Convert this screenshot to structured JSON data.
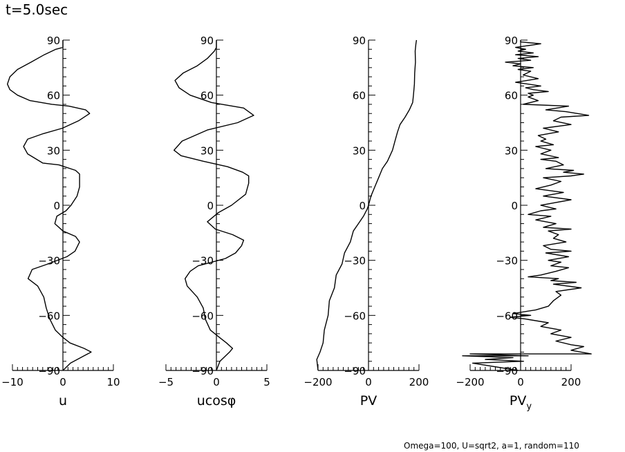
{
  "title": "t=5.0sec",
  "footer": "Omega=100, U=sqrt2, a=1, random=110",
  "chart_data": [
    {
      "type": "line",
      "id": "u",
      "xlabel": "u",
      "ylabel": "",
      "xlim": [
        -10,
        10
      ],
      "ylim": [
        -90,
        90
      ],
      "xticks": [
        -10,
        0,
        10
      ],
      "xtick_labels": [
        "−10",
        "0",
        "10"
      ],
      "yticks": [
        -90,
        -60,
        -30,
        0,
        30,
        60,
        90
      ],
      "ytick_labels": [
        "−90",
        "−60",
        "−30",
        "0",
        "30",
        "60",
        "90"
      ],
      "series": [
        {
          "name": "u",
          "points": [
            [
              0,
              -90
            ],
            [
              1.5,
              -86
            ],
            [
              4.2,
              -82
            ],
            [
              5.6,
              -80
            ],
            [
              4.2,
              -78
            ],
            [
              1.4,
              -75
            ],
            [
              0,
              -72
            ],
            [
              -1.5,
              -68
            ],
            [
              -2.6,
              -62
            ],
            [
              -3.3,
              -56
            ],
            [
              -3.8,
              -50
            ],
            [
              -5,
              -44
            ],
            [
              -6.9,
              -40
            ],
            [
              -6.1,
              -35
            ],
            [
              -3,
              -32
            ],
            [
              0.8,
              -28
            ],
            [
              2.4,
              -25
            ],
            [
              3.3,
              -20
            ],
            [
              2.5,
              -17
            ],
            [
              0,
              -14
            ],
            [
              -1.6,
              -10
            ],
            [
              -1.2,
              -6
            ],
            [
              0.6,
              -3
            ],
            [
              1.6,
              0
            ],
            [
              2.8,
              5
            ],
            [
              3.3,
              10
            ],
            [
              3.3,
              15
            ],
            [
              3.3,
              17
            ],
            [
              2.5,
              19
            ],
            [
              -0.8,
              22
            ],
            [
              -4,
              23
            ],
            [
              -7,
              28
            ],
            [
              -7.8,
              32
            ],
            [
              -7,
              36
            ],
            [
              -3.9,
              39
            ],
            [
              -0.1,
              42
            ],
            [
              3.1,
              46
            ],
            [
              5.3,
              50
            ],
            [
              4.5,
              52
            ],
            [
              1.2,
              54
            ],
            [
              -2.2,
              55
            ],
            [
              -6.5,
              57
            ],
            [
              -9,
              60
            ],
            [
              -10.5,
              63
            ],
            [
              -11,
              66
            ],
            [
              -10.5,
              70
            ],
            [
              -9,
              74
            ],
            [
              -6.3,
              78
            ],
            [
              -3.7,
              82
            ],
            [
              -1.4,
              85
            ],
            [
              0,
              86
            ],
            [
              0,
              90
            ]
          ]
        }
      ]
    },
    {
      "type": "line",
      "id": "ucos",
      "xlabel": "ucosφ",
      "ylabel": "",
      "xlim": [
        -5,
        5
      ],
      "ylim": [
        -90,
        90
      ],
      "xticks": [
        -5,
        0,
        5
      ],
      "xtick_labels": [
        "−5",
        "0",
        "5"
      ],
      "yticks": [
        -90,
        -60,
        -30,
        0,
        30,
        60,
        90
      ],
      "ytick_labels": [
        "−90",
        "−60",
        "−30",
        "0",
        "30",
        "60",
        "90"
      ],
      "series": [
        {
          "name": "ucosφ",
          "points": [
            [
              0,
              -90
            ],
            [
              0.35,
              -85
            ],
            [
              1.3,
              -80
            ],
            [
              1.6,
              -78
            ],
            [
              1,
              -75
            ],
            [
              0.3,
              -72
            ],
            [
              -0.6,
              -68
            ],
            [
              -1.1,
              -62
            ],
            [
              -1.3,
              -56
            ],
            [
              -1.9,
              -50
            ],
            [
              -2.9,
              -44
            ],
            [
              -3.1,
              -40
            ],
            [
              -2.6,
              -36
            ],
            [
              -1.8,
              -33
            ],
            [
              0.9,
              -29
            ],
            [
              1.9,
              -26
            ],
            [
              2.5,
              -22
            ],
            [
              2.7,
              -19
            ],
            [
              1.6,
              -16
            ],
            [
              -0.1,
              -13
            ],
            [
              -0.9,
              -9
            ],
            [
              0.2,
              -4
            ],
            [
              1.5,
              0
            ],
            [
              2.9,
              6
            ],
            [
              3.2,
              12
            ],
            [
              3.2,
              16
            ],
            [
              2.6,
              18
            ],
            [
              1.1,
              21
            ],
            [
              -1.3,
              24
            ],
            [
              -3.5,
              27
            ],
            [
              -4.2,
              30
            ],
            [
              -3.4,
              35
            ],
            [
              -0.9,
              41
            ],
            [
              2.1,
              45
            ],
            [
              3.7,
              49
            ],
            [
              2.7,
              53
            ],
            [
              -0.5,
              56
            ],
            [
              -2.6,
              60
            ],
            [
              -3.7,
              64
            ],
            [
              -4.1,
              68
            ],
            [
              -3.3,
              72
            ],
            [
              -1.9,
              76
            ],
            [
              -0.9,
              80
            ],
            [
              -0.2,
              84
            ],
            [
              0,
              86
            ],
            [
              0,
              90
            ]
          ]
        }
      ]
    },
    {
      "type": "line",
      "id": "pv",
      "xlabel": "PV",
      "ylabel": "",
      "xlim": [
        -200,
        200
      ],
      "ylim": [
        -90,
        90
      ],
      "xticks": [
        -200,
        0,
        200
      ],
      "xtick_labels": [
        "−200",
        "0",
        "200"
      ],
      "yticks": [
        -90,
        -60,
        -30,
        0,
        30,
        60,
        90
      ],
      "ytick_labels": [
        "−90",
        "−60",
        "−30",
        "0",
        "30",
        "60",
        "90"
      ],
      "series": [
        {
          "name": "PV",
          "points": [
            [
              -200,
              -90
            ],
            [
              -205,
              -84
            ],
            [
              -192,
              -80
            ],
            [
              -180,
              -75
            ],
            [
              -175,
              -68
            ],
            [
              -160,
              -60
            ],
            [
              -155,
              -52
            ],
            [
              -135,
              -45
            ],
            [
              -128,
              -38
            ],
            [
              -105,
              -32
            ],
            [
              -95,
              -26
            ],
            [
              -72,
              -20
            ],
            [
              -60,
              -14
            ],
            [
              -40,
              -10
            ],
            [
              -20,
              -6
            ],
            [
              -5,
              -2
            ],
            [
              0,
              0
            ],
            [
              10,
              5
            ],
            [
              25,
              10
            ],
            [
              40,
              15
            ],
            [
              55,
              20
            ],
            [
              75,
              24
            ],
            [
              95,
              30
            ],
            [
              105,
              35
            ],
            [
              115,
              40
            ],
            [
              125,
              44
            ],
            [
              145,
              48
            ],
            [
              162,
              52
            ],
            [
              175,
              56
            ],
            [
              178,
              60
            ],
            [
              182,
              66
            ],
            [
              183,
              72
            ],
            [
              186,
              78
            ],
            [
              185,
              84
            ],
            [
              188,
              88
            ],
            [
              190,
              90
            ]
          ]
        }
      ]
    },
    {
      "type": "line",
      "id": "pvy",
      "xlabel": "PV",
      "xlabel_sub": "y",
      "ylabel": "",
      "xlim": [
        -200,
        200
      ],
      "ylim": [
        -90,
        90
      ],
      "xticks": [
        -200,
        0,
        200
      ],
      "xtick_labels": [
        "−200",
        "0",
        "200"
      ],
      "yticks": [
        -90,
        -60,
        -30,
        0,
        30,
        60,
        90
      ],
      "ytick_labels": [
        "−90",
        "−60",
        "−30",
        "0",
        "30",
        "60",
        "90"
      ],
      "series": [
        {
          "name": "PV_y",
          "points": [
            [
              -10,
              -90
            ],
            [
              -190,
              -86
            ],
            [
              10,
              -85
            ],
            [
              -140,
              -84
            ],
            [
              -30,
              -83
            ],
            [
              -230,
              -82
            ],
            [
              30,
              -82
            ],
            [
              -200,
              -81
            ],
            [
              280,
              -81
            ],
            [
              200,
              -79
            ],
            [
              250,
              -77
            ],
            [
              200,
              -76
            ],
            [
              140,
              -74
            ],
            [
              200,
              -72
            ],
            [
              120,
              -70
            ],
            [
              160,
              -68
            ],
            [
              80,
              -66
            ],
            [
              110,
              -64
            ],
            [
              20,
              -62
            ],
            [
              -40,
              -61
            ],
            [
              40,
              -60
            ],
            [
              -30,
              -59
            ],
            [
              60,
              -57
            ],
            [
              110,
              -55
            ],
            [
              130,
              -52
            ],
            [
              160,
              -49
            ],
            [
              140,
              -47
            ],
            [
              240,
              -45
            ],
            [
              130,
              -43
            ],
            [
              220,
              -42
            ],
            [
              120,
              -41
            ],
            [
              150,
              -40
            ],
            [
              30,
              -39
            ],
            [
              80,
              -38
            ],
            [
              140,
              -36
            ],
            [
              190,
              -34
            ],
            [
              120,
              -33
            ],
            [
              160,
              -31
            ],
            [
              110,
              -30
            ],
            [
              190,
              -28
            ],
            [
              100,
              -26
            ],
            [
              200,
              -25
            ],
            [
              120,
              -24
            ],
            [
              90,
              -22
            ],
            [
              180,
              -20
            ],
            [
              130,
              -18
            ],
            [
              150,
              -16
            ],
            [
              110,
              -14
            ],
            [
              200,
              -13
            ],
            [
              90,
              -12
            ],
            [
              140,
              -10
            ],
            [
              60,
              -8
            ],
            [
              120,
              -6
            ],
            [
              30,
              -5
            ],
            [
              80,
              -3
            ],
            [
              140,
              -2
            ],
            [
              80,
              0
            ],
            [
              120,
              1
            ],
            [
              200,
              3
            ],
            [
              90,
              5
            ],
            [
              170,
              7
            ],
            [
              60,
              9
            ],
            [
              120,
              11
            ],
            [
              160,
              13
            ],
            [
              90,
              15
            ],
            [
              200,
              16
            ],
            [
              250,
              17
            ],
            [
              170,
              18
            ],
            [
              210,
              19
            ],
            [
              100,
              20
            ],
            [
              170,
              22
            ],
            [
              140,
              24
            ],
            [
              80,
              25
            ],
            [
              150,
              26
            ],
            [
              80,
              28
            ],
            [
              120,
              30
            ],
            [
              60,
              32
            ],
            [
              130,
              33
            ],
            [
              80,
              35
            ],
            [
              100,
              36
            ],
            [
              70,
              38
            ],
            [
              150,
              40
            ],
            [
              90,
              42
            ],
            [
              200,
              44
            ],
            [
              130,
              46
            ],
            [
              160,
              48
            ],
            [
              270,
              49
            ],
            [
              180,
              51
            ],
            [
              100,
              52
            ],
            [
              190,
              54
            ],
            [
              10,
              55
            ],
            [
              70,
              57
            ],
            [
              30,
              59
            ],
            [
              50,
              60
            ],
            [
              30,
              61
            ],
            [
              110,
              62
            ],
            [
              50,
              63
            ],
            [
              20,
              64
            ],
            [
              80,
              65
            ],
            [
              30,
              66
            ],
            [
              -20,
              67
            ],
            [
              70,
              69
            ],
            [
              10,
              71
            ],
            [
              40,
              73
            ],
            [
              -10,
              74
            ],
            [
              50,
              75
            ],
            [
              -30,
              76
            ],
            [
              0,
              77
            ],
            [
              -60,
              78
            ],
            [
              40,
              79
            ],
            [
              -10,
              80
            ],
            [
              70,
              81
            ],
            [
              -20,
              82
            ],
            [
              50,
              83
            ],
            [
              -10,
              84
            ],
            [
              20,
              85
            ],
            [
              -20,
              86
            ],
            [
              80,
              88
            ],
            [
              0,
              89
            ],
            [
              0,
              90
            ]
          ]
        }
      ]
    }
  ]
}
